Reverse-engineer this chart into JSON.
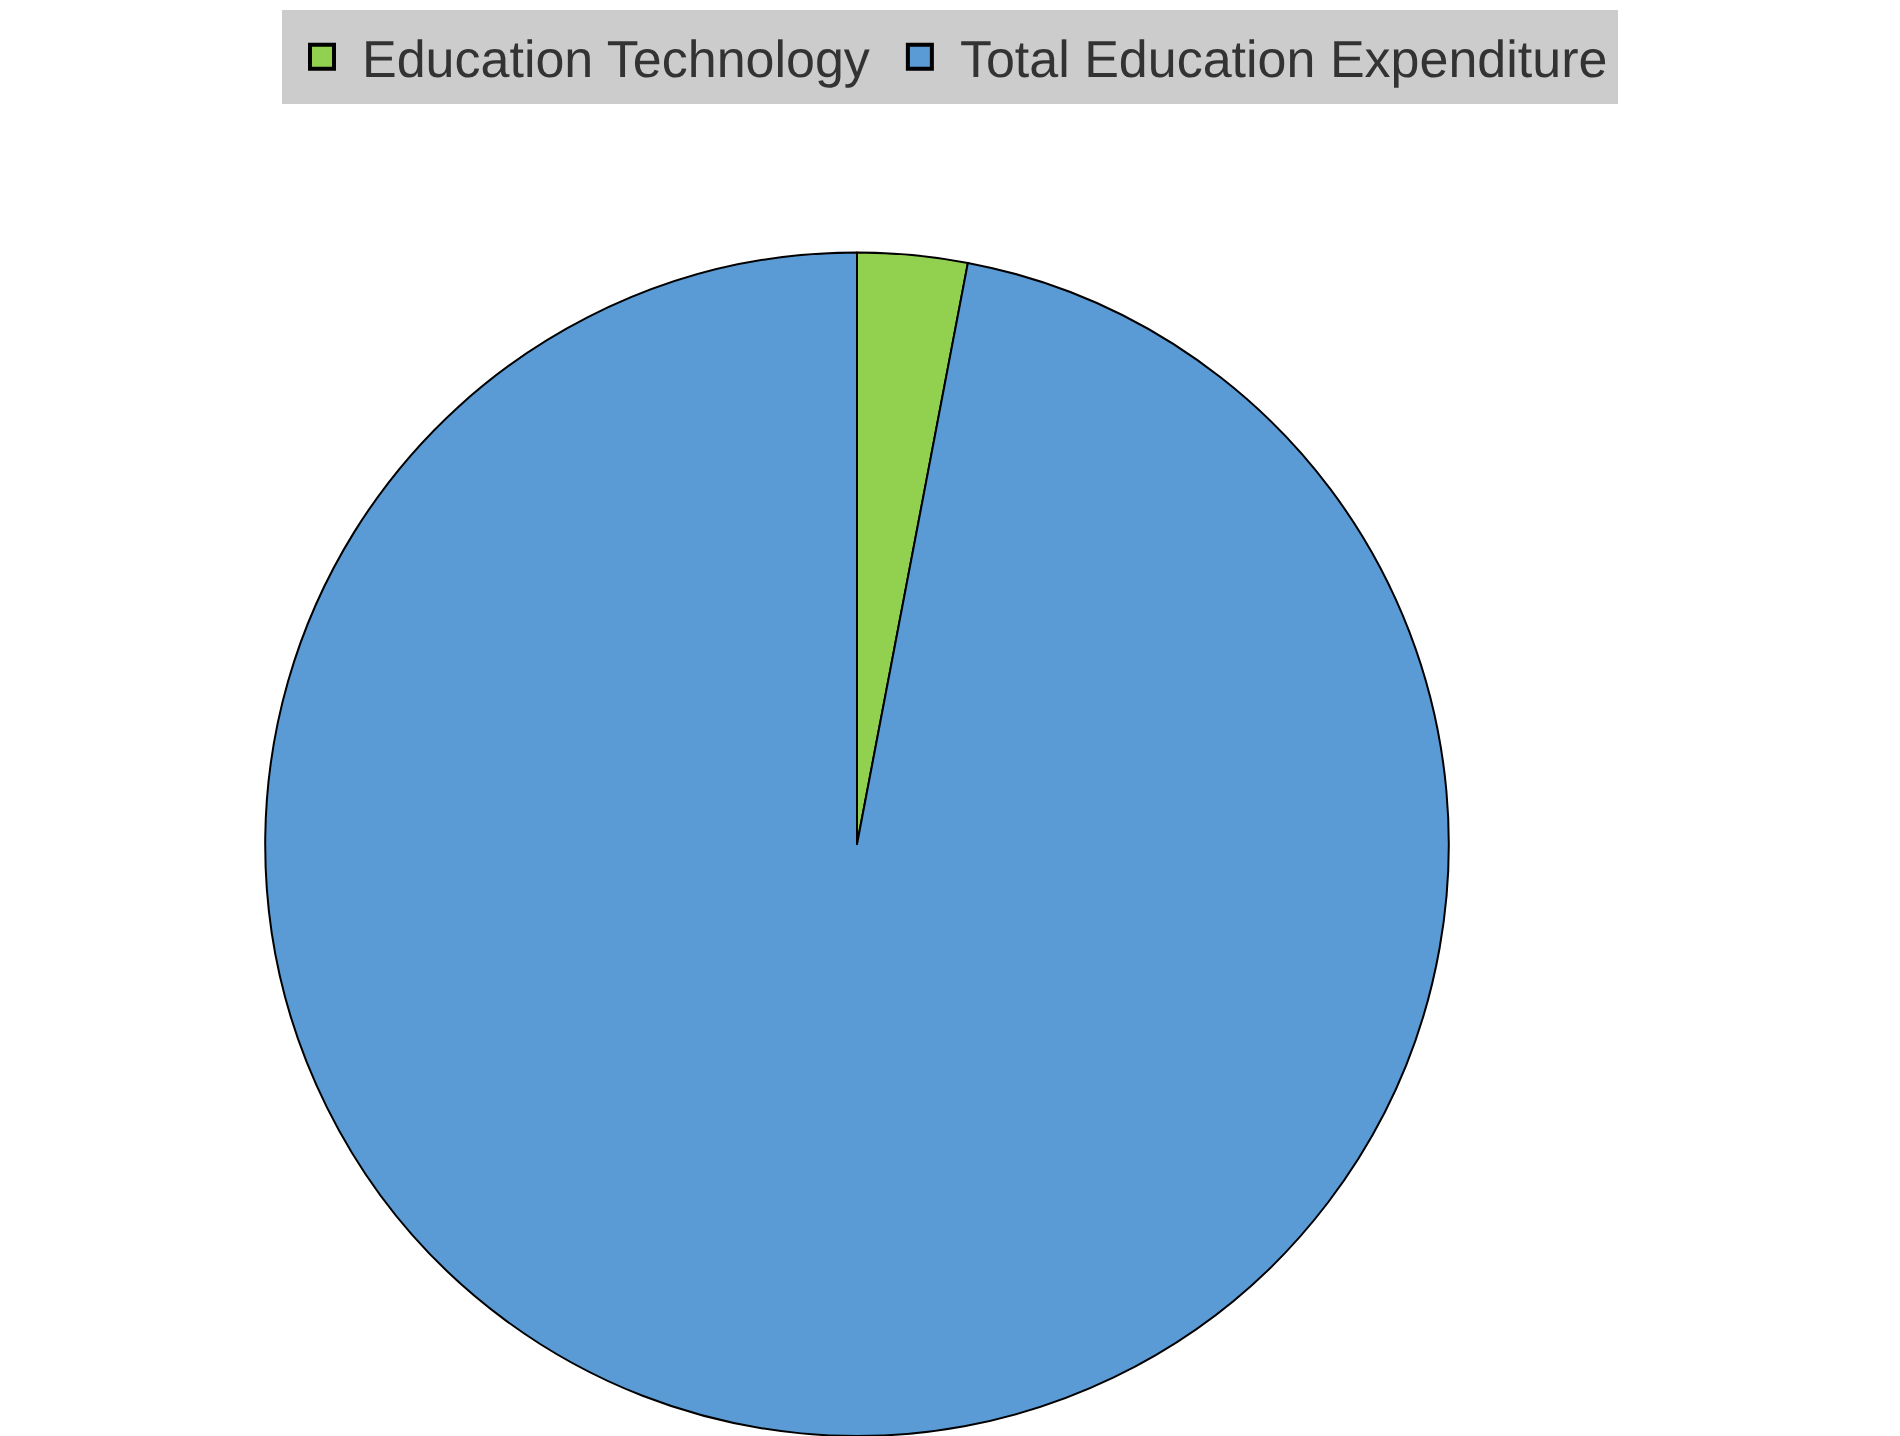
{
  "chart_data": {
    "type": "pie",
    "categories": [
      "Education Technology",
      "Total Education Expenditure"
    ],
    "values": [
      3,
      97
    ],
    "colors": [
      "#92d050",
      "#5b9bd5"
    ],
    "legend": "top"
  }
}
